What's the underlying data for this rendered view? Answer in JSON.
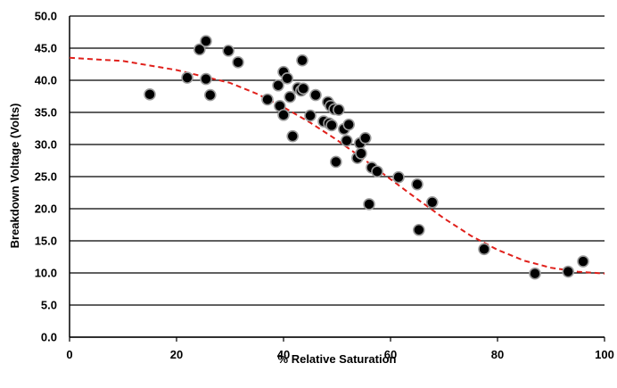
{
  "chart_data": {
    "type": "scatter",
    "title": "",
    "xlabel": "% Relative Saturation",
    "ylabel": "Breakdown Voltage (Volts)",
    "xlim": [
      0,
      100
    ],
    "ylim": [
      0,
      50
    ],
    "x_ticks": [
      "0",
      "20",
      "40",
      "60",
      "80",
      "100"
    ],
    "y_ticks": [
      "0.0",
      "5.0",
      "10.0",
      "15.0",
      "20.0",
      "25.0",
      "30.0",
      "35.0",
      "40.0",
      "45.0",
      "50.0"
    ],
    "grid": "horizontal",
    "colors": {
      "points": "#000000",
      "point_edge": "#9a9a9a",
      "trendline": "#e0201b",
      "grid": "#000000"
    },
    "series": [
      {
        "marker": "circle",
        "points": [
          [
            15.0,
            37.8
          ],
          [
            22.0,
            40.4
          ],
          [
            24.3,
            44.8
          ],
          [
            25.5,
            46.1
          ],
          [
            25.5,
            40.2
          ],
          [
            26.3,
            37.7
          ],
          [
            29.7,
            44.6
          ],
          [
            31.5,
            42.8
          ],
          [
            37.0,
            37.0
          ],
          [
            39.0,
            39.2
          ],
          [
            39.3,
            36.0
          ],
          [
            40.0,
            41.3
          ],
          [
            40.0,
            34.6
          ],
          [
            40.7,
            40.3
          ],
          [
            41.2,
            37.4
          ],
          [
            41.7,
            31.3
          ],
          [
            42.7,
            38.8
          ],
          [
            43.3,
            38.4
          ],
          [
            43.5,
            43.1
          ],
          [
            43.7,
            38.7
          ],
          [
            45.0,
            34.5
          ],
          [
            46.0,
            37.7
          ],
          [
            47.5,
            33.6
          ],
          [
            48.3,
            36.6
          ],
          [
            48.5,
            33.3
          ],
          [
            48.8,
            36.0
          ],
          [
            49.0,
            33.0
          ],
          [
            49.5,
            35.5
          ],
          [
            49.8,
            27.3
          ],
          [
            50.3,
            35.4
          ],
          [
            51.3,
            32.4
          ],
          [
            51.8,
            30.6
          ],
          [
            52.2,
            33.1
          ],
          [
            53.8,
            27.9
          ],
          [
            54.3,
            30.2
          ],
          [
            54.5,
            28.6
          ],
          [
            55.3,
            31.0
          ],
          [
            56.0,
            20.7
          ],
          [
            56.5,
            26.4
          ],
          [
            57.5,
            25.8
          ],
          [
            61.5,
            24.9
          ],
          [
            65.0,
            23.8
          ],
          [
            65.3,
            16.7
          ],
          [
            67.8,
            21.0
          ],
          [
            77.5,
            13.7
          ],
          [
            87.0,
            9.9
          ],
          [
            93.2,
            10.2
          ],
          [
            96.0,
            11.8
          ]
        ]
      }
    ],
    "trendline": {
      "style": "dashed",
      "points": [
        [
          0,
          43.5
        ],
        [
          10,
          43.0
        ],
        [
          20,
          41.6
        ],
        [
          30,
          39.6
        ],
        [
          35,
          37.9
        ],
        [
          40,
          35.8
        ],
        [
          45,
          33.4
        ],
        [
          50,
          30.7
        ],
        [
          55,
          27.7
        ],
        [
          60,
          24.6
        ],
        [
          65,
          21.5
        ],
        [
          70,
          18.5
        ],
        [
          75,
          15.8
        ],
        [
          80,
          13.6
        ],
        [
          85,
          11.9
        ],
        [
          90,
          10.8
        ],
        [
          95,
          10.2
        ],
        [
          100,
          9.9
        ]
      ]
    }
  }
}
